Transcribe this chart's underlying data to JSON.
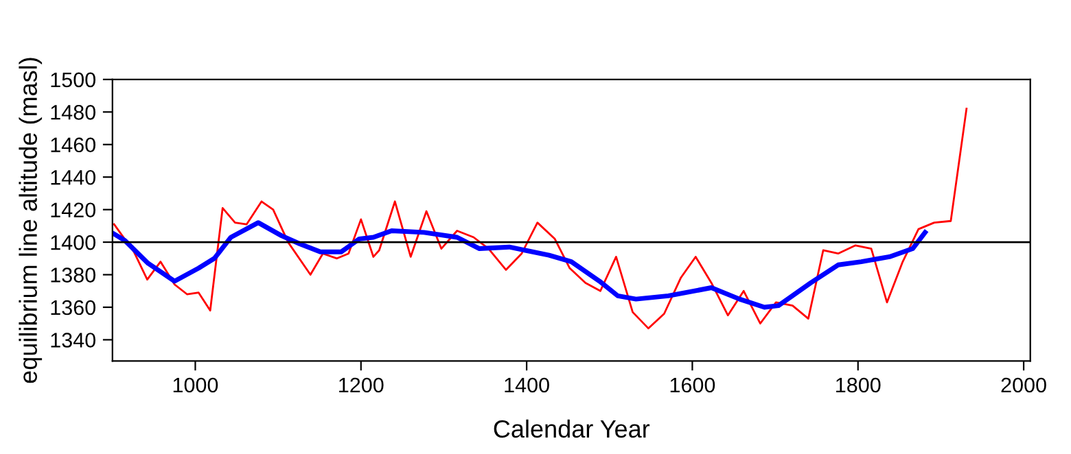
{
  "chart_data": {
    "type": "line",
    "xlabel": "Calendar Year",
    "ylabel": "equilibrium line altitude (masl)",
    "xlim": [
      900,
      2008
    ],
    "ylim": [
      1327,
      1500
    ],
    "xticks": [
      1000,
      1200,
      1400,
      1600,
      1800,
      2000
    ],
    "yticks": [
      1340,
      1360,
      1380,
      1400,
      1420,
      1440,
      1460,
      1480,
      1500
    ],
    "grid": false,
    "legend": false,
    "marker": "none",
    "line_style": "solid",
    "ref_lines": [
      {
        "axis": "y",
        "value": 1400,
        "color": "#000000"
      }
    ],
    "series": [
      {
        "color": "#ff0000",
        "x": [
          902,
          926,
          942,
          958,
          975,
          990,
          1004,
          1018,
          1033,
          1048,
          1062,
          1080,
          1094,
          1112,
          1139,
          1154,
          1171,
          1185,
          1200,
          1215,
          1222,
          1241,
          1260,
          1279,
          1297,
          1316,
          1336,
          1354,
          1375,
          1394,
          1413,
          1434,
          1452,
          1471,
          1489,
          1508,
          1528,
          1547,
          1566,
          1586,
          1604,
          1623,
          1643,
          1662,
          1682,
          1701,
          1721,
          1740,
          1758,
          1776,
          1797,
          1816,
          1835,
          1854,
          1873,
          1892,
          1912,
          1931
        ],
        "values": [
          1411,
          1394,
          1377,
          1388,
          1374,
          1368,
          1369,
          1358,
          1421,
          1412,
          1411,
          1425,
          1420,
          1400,
          1380,
          1393,
          1390,
          1393,
          1414,
          1391,
          1395,
          1425,
          1391,
          1419,
          1396,
          1407,
          1403,
          1396,
          1383,
          1393,
          1412,
          1402,
          1384,
          1375,
          1370,
          1391,
          1357,
          1347,
          1356,
          1378,
          1391,
          1375,
          1355,
          1370,
          1350,
          1363,
          1361,
          1353,
          1395,
          1393,
          1398,
          1396,
          1363,
          1388,
          1408,
          1412,
          1413,
          1482
        ]
      },
      {
        "color": "#0000ff",
        "x": [
          902,
          915,
          943,
          975,
          1004,
          1023,
          1043,
          1076,
          1104,
          1126,
          1151,
          1176,
          1198,
          1215,
          1237,
          1276,
          1316,
          1343,
          1379,
          1427,
          1454,
          1488,
          1510,
          1532,
          1571,
          1623,
          1657,
          1687,
          1704,
          1743,
          1776,
          1804,
          1838,
          1866,
          1881
        ],
        "values": [
          1405,
          1401,
          1387,
          1376,
          1384,
          1390,
          1403,
          1412,
          1404,
          1399,
          1394,
          1394,
          1402,
          1403,
          1407,
          1406,
          1403,
          1396,
          1397,
          1392,
          1388,
          1376,
          1367,
          1365,
          1367,
          1372,
          1365,
          1360,
          1361,
          1375,
          1386,
          1388,
          1391,
          1396,
          1406
        ]
      }
    ]
  }
}
